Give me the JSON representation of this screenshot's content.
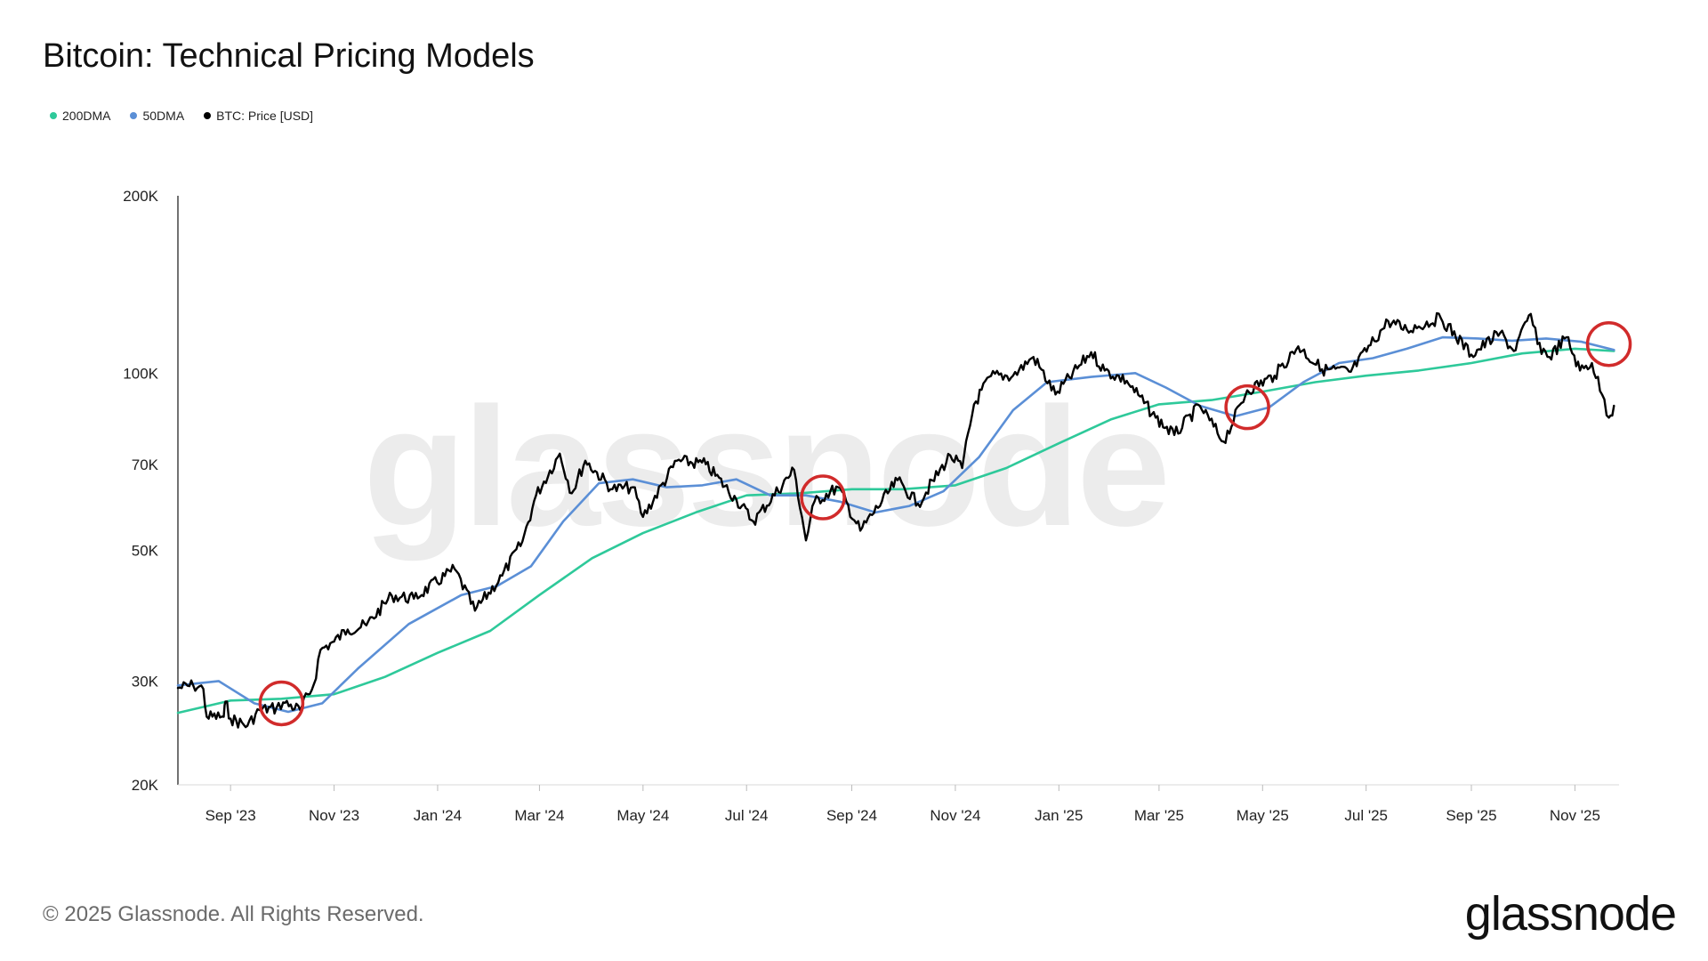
{
  "title": "Bitcoin: Technical Pricing Models",
  "legend": [
    {
      "label": "200DMA",
      "color": "#2ec99a"
    },
    {
      "label": "50DMA",
      "color": "#5b8fd6"
    },
    {
      "label": "BTC: Price [USD]",
      "color": "#000000"
    }
  ],
  "watermark": "glassnode",
  "footer": "© 2025 Glassnode. All Rights Reserved.",
  "logo": "glassnode",
  "chart_data": {
    "type": "line",
    "yscale": "log",
    "ylim": [
      20000,
      200000
    ],
    "xlim": [
      "2023-08-01",
      "2025-11-27"
    ],
    "y_ticks": [
      {
        "value": 20000,
        "label": "20K"
      },
      {
        "value": 30000,
        "label": "30K"
      },
      {
        "value": 50000,
        "label": "50K"
      },
      {
        "value": 70000,
        "label": "70K"
      },
      {
        "value": 100000,
        "label": "100K"
      },
      {
        "value": 200000,
        "label": "200K"
      }
    ],
    "x_ticks": [
      {
        "date": "2023-09-01",
        "label": "Sep '23"
      },
      {
        "date": "2023-11-01",
        "label": "Nov '23"
      },
      {
        "date": "2024-01-01",
        "label": "Jan '24"
      },
      {
        "date": "2024-03-01",
        "label": "Mar '24"
      },
      {
        "date": "2024-05-01",
        "label": "May '24"
      },
      {
        "date": "2024-07-01",
        "label": "Jul '24"
      },
      {
        "date": "2024-09-01",
        "label": "Sep '24"
      },
      {
        "date": "2024-11-01",
        "label": "Nov '24"
      },
      {
        "date": "2025-01-01",
        "label": "Jan '25"
      },
      {
        "date": "2025-03-01",
        "label": "Mar '25"
      },
      {
        "date": "2025-05-01",
        "label": "May '25"
      },
      {
        "date": "2025-07-01",
        "label": "Jul '25"
      },
      {
        "date": "2025-09-01",
        "label": "Sep '25"
      },
      {
        "date": "2025-11-01",
        "label": "Nov '25"
      }
    ],
    "series": [
      {
        "name": "200DMA",
        "color": "#2ec99a",
        "points": [
          [
            "2023-08-01",
            26500
          ],
          [
            "2023-09-01",
            27800
          ],
          [
            "2023-10-01",
            28000
          ],
          [
            "2023-11-01",
            28500
          ],
          [
            "2023-12-01",
            30500
          ],
          [
            "2024-01-01",
            33500
          ],
          [
            "2024-02-01",
            36500
          ],
          [
            "2024-03-01",
            42000
          ],
          [
            "2024-04-01",
            48500
          ],
          [
            "2024-05-01",
            53500
          ],
          [
            "2024-06-01",
            58000
          ],
          [
            "2024-07-01",
            62000
          ],
          [
            "2024-08-01",
            62500
          ],
          [
            "2024-09-01",
            63500
          ],
          [
            "2024-10-01",
            63500
          ],
          [
            "2024-11-01",
            64500
          ],
          [
            "2024-12-01",
            69000
          ],
          [
            "2025-01-01",
            76000
          ],
          [
            "2025-02-01",
            83500
          ],
          [
            "2025-03-01",
            88500
          ],
          [
            "2025-04-01",
            90000
          ],
          [
            "2025-05-01",
            93000
          ],
          [
            "2025-06-01",
            96500
          ],
          [
            "2025-07-01",
            99000
          ],
          [
            "2025-08-01",
            101000
          ],
          [
            "2025-09-01",
            104000
          ],
          [
            "2025-10-01",
            108000
          ],
          [
            "2025-11-01",
            110000
          ],
          [
            "2025-11-24",
            109000
          ]
        ]
      },
      {
        "name": "50DMA",
        "color": "#5b8fd6",
        "points": [
          [
            "2023-08-01",
            29500
          ],
          [
            "2023-08-25",
            30000
          ],
          [
            "2023-09-15",
            27500
          ],
          [
            "2023-10-05",
            26600
          ],
          [
            "2023-10-25",
            27500
          ],
          [
            "2023-11-15",
            31500
          ],
          [
            "2023-12-15",
            37500
          ],
          [
            "2024-01-15",
            42000
          ],
          [
            "2024-02-05",
            43500
          ],
          [
            "2024-02-25",
            47000
          ],
          [
            "2024-03-15",
            56000
          ],
          [
            "2024-04-05",
            65000
          ],
          [
            "2024-04-25",
            66000
          ],
          [
            "2024-05-15",
            64000
          ],
          [
            "2024-06-05",
            64500
          ],
          [
            "2024-06-25",
            66000
          ],
          [
            "2024-07-15",
            62000
          ],
          [
            "2024-08-05",
            62000
          ],
          [
            "2024-08-25",
            60500
          ],
          [
            "2024-09-15",
            58000
          ],
          [
            "2024-10-05",
            59500
          ],
          [
            "2024-10-25",
            63000
          ],
          [
            "2024-11-15",
            72000
          ],
          [
            "2024-12-05",
            86500
          ],
          [
            "2024-12-25",
            96500
          ],
          [
            "2025-01-20",
            98500
          ],
          [
            "2025-02-15",
            100000
          ],
          [
            "2025-03-05",
            94500
          ],
          [
            "2025-03-25",
            88000
          ],
          [
            "2025-04-15",
            84500
          ],
          [
            "2025-05-05",
            87500
          ],
          [
            "2025-05-25",
            96500
          ],
          [
            "2025-06-15",
            104000
          ],
          [
            "2025-07-05",
            106000
          ],
          [
            "2025-07-25",
            110000
          ],
          [
            "2025-08-15",
            115000
          ],
          [
            "2025-09-05",
            114500
          ],
          [
            "2025-09-25",
            113500
          ],
          [
            "2025-10-15",
            114500
          ],
          [
            "2025-11-05",
            113000
          ],
          [
            "2025-11-24",
            109500
          ]
        ]
      },
      {
        "name": "BTC: Price [USD]",
        "color": "#000000",
        "points": [
          [
            "2023-08-01",
            29200
          ],
          [
            "2023-08-10",
            29500
          ],
          [
            "2023-08-16",
            29100
          ],
          [
            "2023-08-18",
            26100
          ],
          [
            "2023-08-28",
            26100
          ],
          [
            "2023-08-29",
            27700
          ],
          [
            "2023-09-01",
            25900
          ],
          [
            "2023-09-11",
            25200
          ],
          [
            "2023-09-18",
            26800
          ],
          [
            "2023-09-28",
            27000
          ],
          [
            "2023-10-02",
            27600
          ],
          [
            "2023-10-12",
            26800
          ],
          [
            "2023-10-20",
            29600
          ],
          [
            "2023-10-24",
            33900
          ],
          [
            "2023-11-01",
            35000
          ],
          [
            "2023-11-09",
            36700
          ],
          [
            "2023-11-20",
            37300
          ],
          [
            "2023-12-05",
            41900
          ],
          [
            "2023-12-18",
            41400
          ],
          [
            "2024-01-11",
            46500
          ],
          [
            "2024-01-23",
            39500
          ],
          [
            "2024-02-08",
            45300
          ],
          [
            "2024-02-20",
            51800
          ],
          [
            "2024-02-28",
            62000
          ],
          [
            "2024-03-13",
            73000
          ],
          [
            "2024-03-20",
            62500
          ],
          [
            "2024-03-28",
            71000
          ],
          [
            "2024-04-13",
            63500
          ],
          [
            "2024-04-25",
            64000
          ],
          [
            "2024-05-01",
            57000
          ],
          [
            "2024-05-21",
            71000
          ],
          [
            "2024-06-07",
            70000
          ],
          [
            "2024-06-25",
            61000
          ],
          [
            "2024-07-05",
            56000
          ],
          [
            "2024-07-29",
            68500
          ],
          [
            "2024-08-05",
            52000
          ],
          [
            "2024-08-10",
            60500
          ],
          [
            "2024-08-24",
            64000
          ],
          [
            "2024-09-06",
            54000
          ],
          [
            "2024-09-28",
            65800
          ],
          [
            "2024-10-10",
            60000
          ],
          [
            "2024-10-29",
            72500
          ],
          [
            "2024-11-05",
            69000
          ],
          [
            "2024-11-12",
            88500
          ],
          [
            "2024-11-22",
            98900
          ],
          [
            "2024-12-05",
            99000
          ],
          [
            "2024-12-17",
            106500
          ],
          [
            "2024-12-30",
            92000
          ],
          [
            "2025-01-20",
            108500
          ],
          [
            "2025-01-28",
            101000
          ],
          [
            "2025-02-10",
            97000
          ],
          [
            "2025-02-27",
            84000
          ],
          [
            "2025-03-10",
            78500
          ],
          [
            "2025-03-25",
            88000
          ],
          [
            "2025-04-08",
            76500
          ],
          [
            "2025-04-22",
            93500
          ],
          [
            "2025-05-08",
            99000
          ],
          [
            "2025-05-22",
            111000
          ],
          [
            "2025-06-05",
            101500
          ],
          [
            "2025-06-22",
            100500
          ],
          [
            "2025-07-14",
            122500
          ],
          [
            "2025-07-25",
            118500
          ],
          [
            "2025-08-14",
            124000
          ],
          [
            "2025-09-01",
            107500
          ],
          [
            "2025-09-18",
            117000
          ],
          [
            "2025-09-26",
            109000
          ],
          [
            "2025-10-06",
            126000
          ],
          [
            "2025-10-10",
            112000
          ],
          [
            "2025-10-17",
            106500
          ],
          [
            "2025-10-27",
            115000
          ],
          [
            "2025-11-04",
            101000
          ],
          [
            "2025-11-11",
            104000
          ],
          [
            "2025-11-17",
            92000
          ],
          [
            "2025-11-21",
            84000
          ],
          [
            "2025-11-24",
            88000
          ]
        ]
      }
    ],
    "annotations": [
      {
        "type": "circle",
        "date": "2023-10-01",
        "value": 27500,
        "color": "#d12b2b"
      },
      {
        "type": "circle",
        "date": "2024-08-15",
        "value": 61500,
        "color": "#d12b2b"
      },
      {
        "type": "circle",
        "date": "2025-04-22",
        "value": 87500,
        "color": "#d12b2b"
      },
      {
        "type": "circle",
        "date": "2025-11-21",
        "value": 112000,
        "color": "#d12b2b"
      }
    ]
  }
}
